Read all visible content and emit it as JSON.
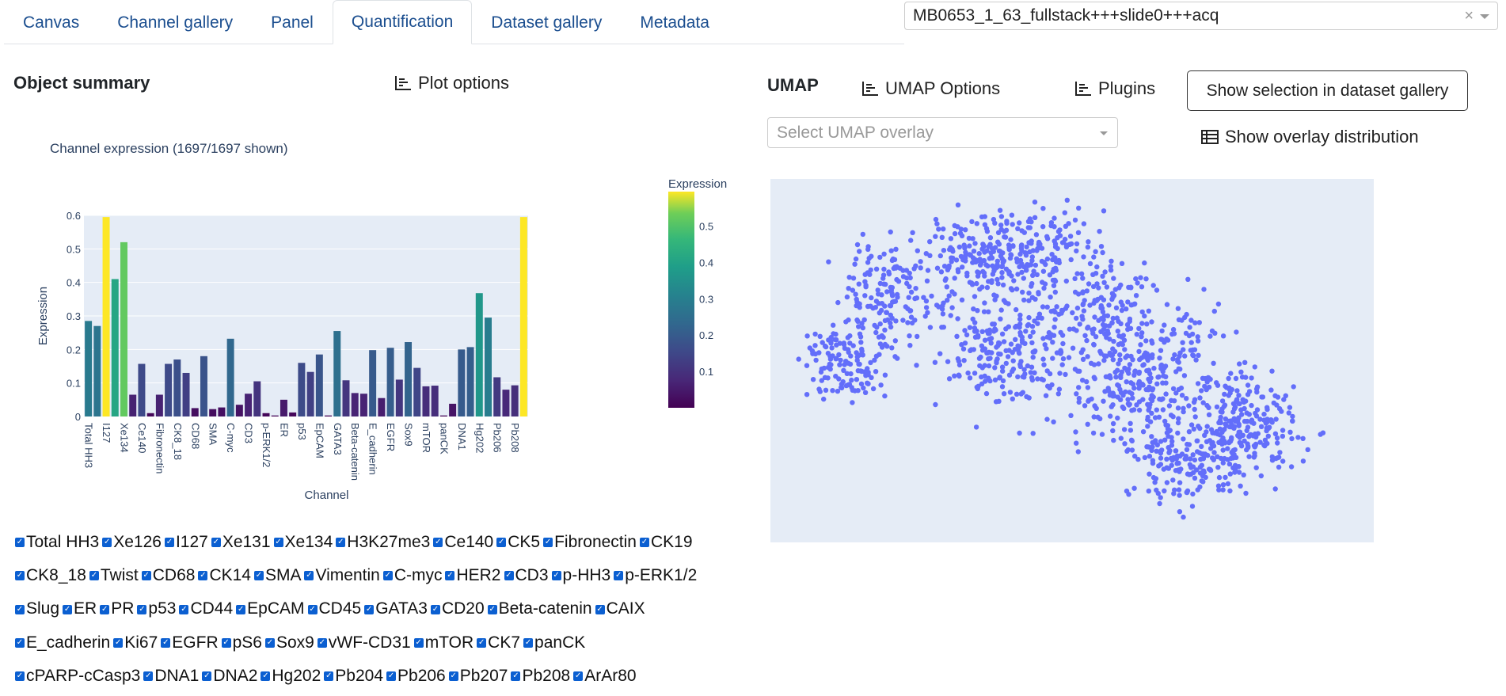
{
  "tabs": [
    {
      "label": "Canvas",
      "active": false
    },
    {
      "label": "Channel gallery",
      "active": false
    },
    {
      "label": "Panel",
      "active": false
    },
    {
      "label": "Quantification",
      "active": true
    },
    {
      "label": "Dataset gallery",
      "active": false
    },
    {
      "label": "Metadata",
      "active": false
    }
  ],
  "dataset_select": {
    "value": "MB0653_1_63_fullstack+++slide0+++acq",
    "clear": "×"
  },
  "object_summary": {
    "title": "Object summary",
    "plot_options": "Plot options"
  },
  "umap": {
    "title": "UMAP",
    "options": "UMAP Options",
    "plugins": "Plugins",
    "show_selection": "Show selection in dataset gallery",
    "overlay_placeholder": "Select UMAP overlay",
    "show_distribution": "Show overlay distribution",
    "point_color": "#636efa",
    "background": "#e5ecf6"
  },
  "chart_data": {
    "type": "bar",
    "title": "Channel expression (1697/1697 shown)",
    "xlabel": "Channel",
    "ylabel": "Expression",
    "ylim": [
      0,
      0.6
    ],
    "yticks": [
      "0",
      "0.1",
      "0.2",
      "0.3",
      "0.4",
      "0.5",
      "0.6"
    ],
    "colorbar_title": "Expression",
    "colorbar_ticks": [
      "0.1",
      "0.2",
      "0.3",
      "0.4",
      "0.5"
    ],
    "categories": [
      "Total HH3",
      "Xe126",
      "I127",
      "Xe131",
      "Xe134",
      "H3K27me3",
      "Ce140",
      "CK5",
      "Fibronectin",
      "CK19",
      "CK8_18",
      "Twist",
      "CD68",
      "CK14",
      "SMA",
      "Vimentin",
      "C-myc",
      "HER2",
      "CD3",
      "p-HH3",
      "p-ERK1/2",
      "Slug",
      "ER",
      "PR",
      "p53",
      "CD44",
      "EpCAM",
      "CD45",
      "GATA3",
      "CD20",
      "Beta-catenin",
      "CAIX",
      "E_cadherin",
      "Ki67",
      "EGFR",
      "pS6",
      "Sox9",
      "vWF-CD31",
      "mTOR",
      "CK7",
      "panCK",
      "cPARP-cCasp3",
      "DNA1",
      "DNA2",
      "Hg202",
      "Pb204",
      "Pb206",
      "Pb207",
      "Pb208",
      "ArAr80"
    ],
    "tick_labels": [
      "Total HH3",
      "I127",
      "Xe134",
      "Ce140",
      "Fibronectin",
      "CK8_18",
      "CD68",
      "SMA",
      "C-myc",
      "CD3",
      "p-ERK1/2",
      "ER",
      "p53",
      "EpCAM",
      "GATA3",
      "Beta-catenin",
      "E_cadherin",
      "EGFR",
      "Sox9",
      "mTOR",
      "panCK",
      "DNA1",
      "Hg202",
      "Pb206",
      "Pb208"
    ],
    "values": [
      0.285,
      0.27,
      0.595,
      0.41,
      0.52,
      0.065,
      0.157,
      0.01,
      0.065,
      0.157,
      0.17,
      0.13,
      0.025,
      0.18,
      0.022,
      0.027,
      0.232,
      0.035,
      0.068,
      0.105,
      0.01,
      0.003,
      0.05,
      0.012,
      0.16,
      0.133,
      0.185,
      0.003,
      0.255,
      0.108,
      0.07,
      0.068,
      0.198,
      0.055,
      0.205,
      0.11,
      0.222,
      0.145,
      0.09,
      0.092,
      0.003,
      0.038,
      0.2,
      0.207,
      0.368,
      0.295,
      0.117,
      0.08,
      0.093,
      0.595
    ]
  },
  "channels": [
    [
      "Total HH3",
      "Xe126",
      "I127",
      "Xe131",
      "Xe134",
      "H3K27me3",
      "Ce140",
      "CK5",
      "Fibronectin",
      "CK19"
    ],
    [
      "CK8_18",
      "Twist",
      "CD68",
      "CK14",
      "SMA",
      "Vimentin",
      "C-myc",
      "HER2",
      "CD3",
      "p-HH3",
      "p-ERK1/2"
    ],
    [
      "Slug",
      "ER",
      "PR",
      "p53",
      "CD44",
      "EpCAM",
      "CD45",
      "GATA3",
      "CD20",
      "Beta-catenin",
      "CAIX"
    ],
    [
      "E_cadherin",
      "Ki67",
      "EGFR",
      "pS6",
      "Sox9",
      "vWF-CD31",
      "mTOR",
      "CK7",
      "panCK"
    ],
    [
      "cPARP-cCasp3",
      "DNA1",
      "DNA2",
      "Hg202",
      "Pb204",
      "Pb206",
      "Pb207",
      "Pb208",
      "ArAr80"
    ]
  ],
  "icons": {
    "plot": "bar-chart-icon",
    "table": "table-icon"
  }
}
